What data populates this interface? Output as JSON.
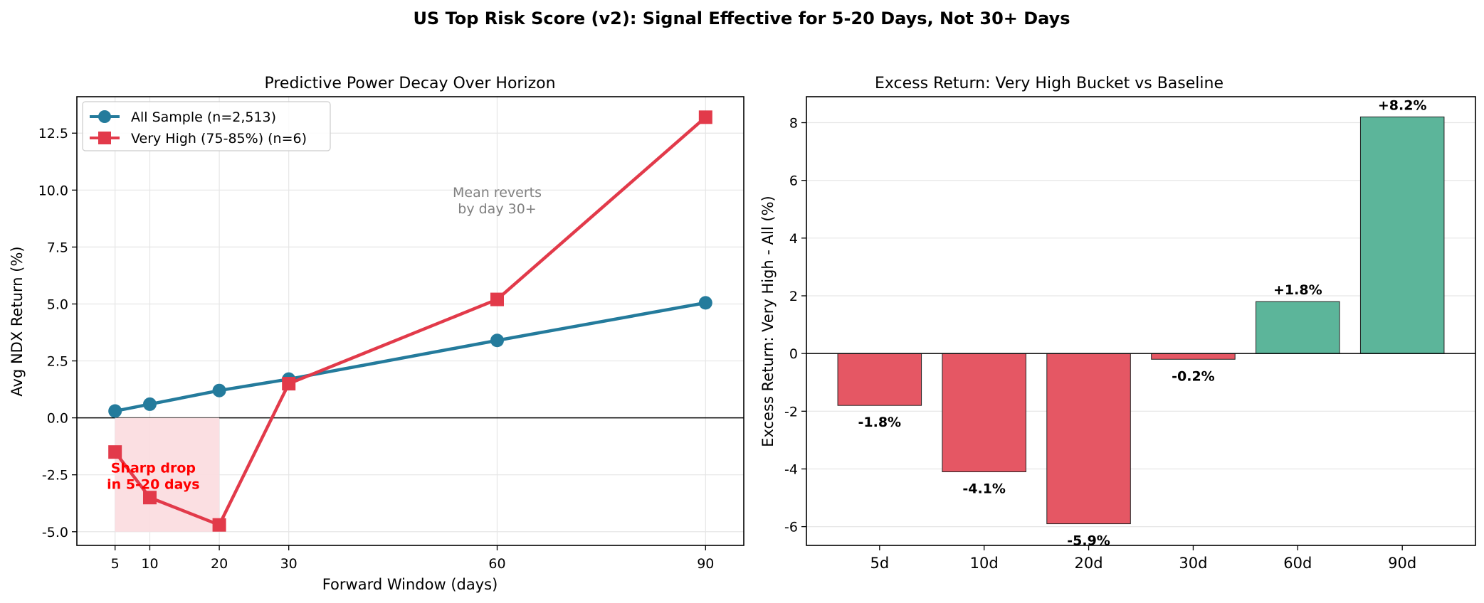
{
  "figure_title": "US Top Risk Score (v2): Signal Effective for 5-20 Days, Not 30+ Days",
  "colors": {
    "all_sample": "#247b9c",
    "very_high": "#e23a4a",
    "negative_bar": "#e55764",
    "positive_bar": "#5cb59a",
    "shade": "#fbdde0",
    "annotation_red": "#ff0000",
    "annotation_gray": "#808080"
  },
  "chart_data": [
    {
      "type": "line",
      "title": "Predictive Power Decay Over Horizon",
      "xlabel": "Forward Window (days)",
      "ylabel": "Avg NDX Return (%)",
      "x": [
        5,
        10,
        20,
        30,
        60,
        90
      ],
      "xticks": [
        "5",
        "10",
        "20",
        "30",
        "60",
        "90"
      ],
      "yticks": [
        "-5.0",
        "-2.5",
        "0.0",
        "2.5",
        "5.0",
        "7.5",
        "10.0",
        "12.5"
      ],
      "xlim": [
        -0.5,
        95.5
      ],
      "ylim": [
        -5.6,
        14.1
      ],
      "grid": true,
      "legend_position": "upper-left",
      "series": [
        {
          "name": "All Sample (n=2,513)",
          "marker": "circle",
          "values": [
            0.3,
            0.6,
            1.2,
            1.7,
            3.4,
            5.05
          ]
        },
        {
          "name": "Very High (75-85%) (n=6)",
          "marker": "square",
          "values": [
            -1.5,
            -3.5,
            -4.7,
            1.5,
            5.2,
            13.2
          ]
        }
      ],
      "shaded_region": {
        "x": [
          5,
          20
        ],
        "y": [
          -5.0,
          0
        ]
      },
      "annotations": [
        {
          "text_lines": [
            "Sharp drop",
            "in 5-20 days"
          ],
          "x": 10.5,
          "y": -2.4,
          "style": "red-bold"
        },
        {
          "text_lines": [
            "Mean reverts",
            "by day 30+"
          ],
          "x": 60,
          "y": 9.7,
          "style": "gray"
        }
      ]
    },
    {
      "type": "bar",
      "title": "Excess Return: Very High Bucket vs Baseline",
      "xlabel": "",
      "ylabel": "Excess Return: Very High - All (%)",
      "categories": [
        "5d",
        "10d",
        "20d",
        "30d",
        "60d",
        "90d"
      ],
      "values": [
        -1.8,
        -4.1,
        -5.9,
        -0.2,
        1.8,
        8.2
      ],
      "data_labels": [
        "-1.8%",
        "-4.1%",
        "-5.9%",
        "-0.2%",
        "+1.8%",
        "+8.2%"
      ],
      "yticks": [
        "-6",
        "-4",
        "-2",
        "0",
        "2",
        "4",
        "6",
        "8"
      ],
      "ylim": [
        -6.65,
        8.9
      ],
      "grid": true
    }
  ]
}
